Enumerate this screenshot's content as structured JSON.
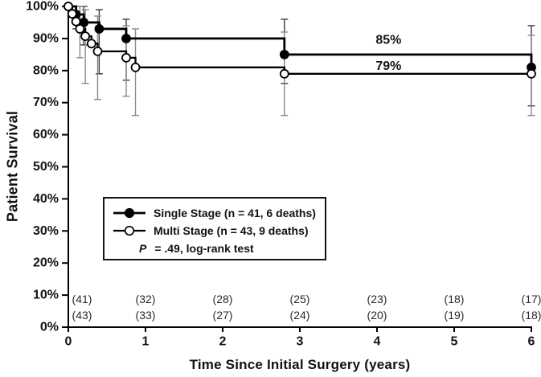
{
  "chart_data": {
    "type": "line",
    "subtype": "kaplan-meier-step",
    "title": "",
    "xlabel": "Time Since Initial Surgery (years)",
    "ylabel": "Patient Survival",
    "xlim": [
      0,
      6
    ],
    "ylim": [
      0,
      100
    ],
    "grid": false,
    "legend_position": "lower-center-inside",
    "x_ticks": [
      {
        "v": 0,
        "label": "0"
      },
      {
        "v": 1,
        "label": "1"
      },
      {
        "v": 2,
        "label": "2"
      },
      {
        "v": 3,
        "label": "3"
      },
      {
        "v": 4,
        "label": "4"
      },
      {
        "v": 5,
        "label": "5"
      },
      {
        "v": 6,
        "label": "6"
      }
    ],
    "y_ticks": [
      {
        "v": 0,
        "label": "0%"
      },
      {
        "v": 10,
        "label": "10%"
      },
      {
        "v": 20,
        "label": "20%"
      },
      {
        "v": 30,
        "label": "30%"
      },
      {
        "v": 40,
        "label": "40%"
      },
      {
        "v": 50,
        "label": "50%"
      },
      {
        "v": 60,
        "label": "60%"
      },
      {
        "v": 70,
        "label": "70%"
      },
      {
        "v": 80,
        "label": "80%"
      },
      {
        "v": 90,
        "label": "90%"
      },
      {
        "v": 100,
        "label": "100%"
      }
    ],
    "series": [
      {
        "name": "Single Stage (n = 41, 6 deaths)",
        "marker": "filled-circle",
        "line_color": "#000000",
        "line_width": 2.8,
        "error_bar_color": "#3d3d3d",
        "points": [
          [
            0,
            100
          ],
          [
            0.1,
            97.5
          ],
          [
            0.2,
            95
          ],
          [
            0.4,
            93
          ],
          [
            0.75,
            90
          ],
          [
            2.8,
            85
          ],
          [
            6,
            81
          ]
        ],
        "at_risk": [
          41,
          32,
          28,
          25,
          23,
          18,
          17
        ],
        "error_bars": [
          {
            "t": 0.1,
            "lo": 93,
            "hi": 100
          },
          {
            "t": 0.2,
            "lo": 88,
            "hi": 100
          },
          {
            "t": 0.4,
            "lo": 79,
            "hi": 99
          },
          {
            "t": 0.75,
            "lo": 77,
            "hi": 96
          },
          {
            "t": 2.8,
            "lo": 76,
            "hi": 96
          },
          {
            "t": 6,
            "lo": 69,
            "hi": 94
          }
        ]
      },
      {
        "name": "Multi Stage (n = 43, 9 deaths)",
        "marker": "open-circle",
        "line_color": "#000000",
        "line_width": 2.3,
        "error_bar_color": "#8a8a8a",
        "points": [
          [
            0,
            100
          ],
          [
            0.05,
            97.7
          ],
          [
            0.1,
            95.3
          ],
          [
            0.15,
            93
          ],
          [
            0.22,
            90.7
          ],
          [
            0.3,
            88.4
          ],
          [
            0.38,
            86
          ],
          [
            0.75,
            84
          ],
          [
            0.87,
            81
          ],
          [
            2.8,
            79
          ],
          [
            6,
            79
          ]
        ],
        "at_risk": [
          43,
          33,
          27,
          24,
          20,
          19,
          18
        ],
        "error_bars": [
          {
            "t": 0.15,
            "lo": 84,
            "hi": 100
          },
          {
            "t": 0.22,
            "lo": 76,
            "hi": 99
          },
          {
            "t": 0.38,
            "lo": 71,
            "hi": 97
          },
          {
            "t": 0.75,
            "lo": 72,
            "hi": 94
          },
          {
            "t": 0.87,
            "lo": 66,
            "hi": 93
          },
          {
            "t": 2.8,
            "lo": 66,
            "hi": 92
          },
          {
            "t": 6,
            "lo": 66,
            "hi": 91
          }
        ]
      }
    ],
    "annotations": [
      {
        "text": "85%",
        "t": 4.15,
        "y": 89.5
      },
      {
        "text": "79%",
        "t": 4.15,
        "y": 81.3
      }
    ],
    "legend": {
      "stat_p": "P",
      "stat_text": " = .49, log-rank test"
    }
  }
}
